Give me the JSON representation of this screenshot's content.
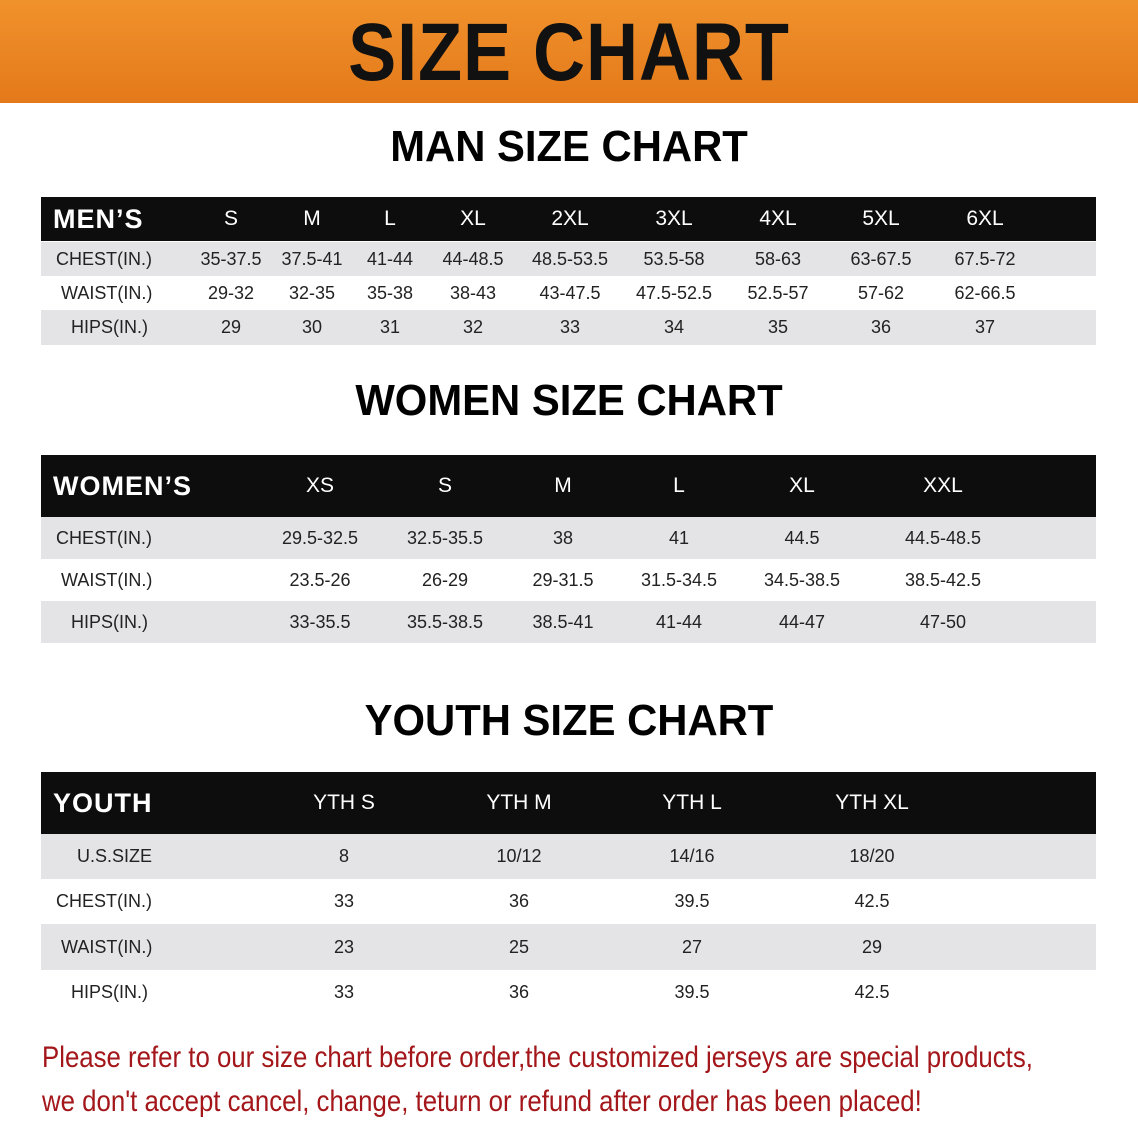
{
  "banner": {
    "title": "SIZE CHART",
    "color": "#e8821f"
  },
  "men": {
    "title": "MAN SIZE CHART",
    "header": [
      "MEN’S",
      "S",
      "M",
      "L",
      "XL",
      "2XL",
      "3XL",
      "4XL",
      "5XL",
      "6XL"
    ],
    "rows": [
      [
        "CHEST(IN.)",
        "35-37.5",
        "37.5-41",
        "41-44",
        "44-48.5",
        "48.5-53.5",
        "53.5-58",
        "58-63",
        "63-67.5",
        "67.5-72"
      ],
      [
        "WAIST(IN.)",
        "29-32",
        "32-35",
        "35-38",
        "38-43",
        "43-47.5",
        "47.5-52.5",
        "52.5-57",
        "57-62",
        "62-66.5"
      ],
      [
        "HIPS(IN.)",
        "29",
        "30",
        "31",
        "32",
        "33",
        "34",
        "35",
        "36",
        "37"
      ]
    ]
  },
  "women": {
    "title": "WOMEN SIZE CHART",
    "header": [
      "WOMEN’S",
      "XS",
      "S",
      "M",
      "L",
      "XL",
      "XXL"
    ],
    "rows": [
      [
        "CHEST(IN.)",
        "29.5-32.5",
        "32.5-35.5",
        "38",
        "41",
        "44.5",
        "44.5-48.5"
      ],
      [
        "WAIST(IN.)",
        "23.5-26",
        "26-29",
        "29-31.5",
        "31.5-34.5",
        "34.5-38.5",
        "38.5-42.5"
      ],
      [
        "HIPS(IN.)",
        "33-35.5",
        "35.5-38.5",
        "38.5-41",
        "41-44",
        "44-47",
        "47-50"
      ]
    ]
  },
  "youth": {
    "title": "YOUTH SIZE CHART",
    "header": [
      "YOUTH",
      "YTH S",
      "YTH M",
      "YTH L",
      "YTH XL"
    ],
    "rows": [
      [
        "U.S.SIZE",
        "8",
        "10/12",
        "14/16",
        "18/20"
      ],
      [
        "CHEST(IN.)",
        "33",
        "36",
        "39.5",
        "42.5"
      ],
      [
        "WAIST(IN.)",
        "23",
        "25",
        "27",
        "29"
      ],
      [
        "HIPS(IN.)",
        "33",
        "36",
        "39.5",
        "42.5"
      ]
    ]
  },
  "notice": {
    "line1": "Please refer to our size chart before order,the customized jerseys are special products,",
    "line2": "we don't accept cancel, change, teturn or refund after order has been placed!",
    "color": "#a3161a"
  }
}
